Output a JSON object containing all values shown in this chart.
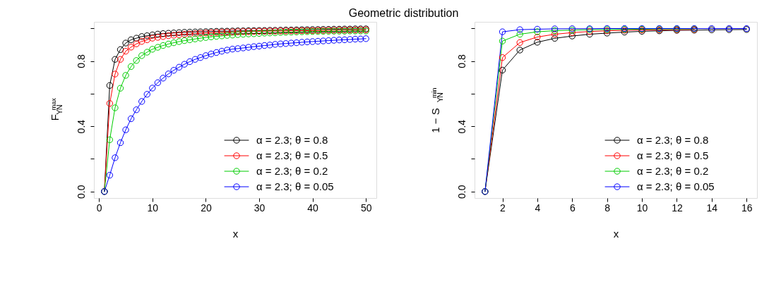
{
  "chart_data": [
    {
      "type": "line",
      "title": "Geometric distribution",
      "xlabel": "x",
      "ylabel": "F$_{Y}$$^{max}$$_{N}$",
      "marker": "circle",
      "line_style": "solid",
      "legend": "bottom right",
      "x": [
        1,
        2,
        3,
        4,
        5,
        6,
        7,
        8,
        9,
        10,
        11,
        12,
        13,
        14,
        15,
        16,
        17,
        18,
        19,
        20,
        21,
        22,
        23,
        24,
        25,
        26,
        27,
        28,
        29,
        30,
        31,
        32,
        33,
        34,
        35,
        36,
        37,
        38,
        39,
        40,
        41,
        42,
        43,
        44,
        45,
        46,
        47,
        48,
        49,
        50
      ],
      "xlim": [
        -0.96,
        51.96
      ],
      "xticks": [
        0,
        10,
        20,
        30,
        40,
        50
      ],
      "ylim": [
        -0.04,
        1.04
      ],
      "yticks": [
        {
          "value": 0,
          "label": "0.0"
        },
        {
          "value": 0.2,
          "label": null
        },
        {
          "value": 0.4,
          "label": "0.4"
        },
        {
          "value": 0.6,
          "label": null
        },
        {
          "value": 0.8,
          "label": "0.8"
        },
        {
          "value": 1.0,
          "label": null
        }
      ],
      "series": [
        {
          "name": "α = 2.3; θ = 0.8",
          "color": "#000000",
          "values": [
            0,
            0.65,
            0.81,
            0.87,
            0.91,
            0.93,
            0.94,
            0.95,
            0.955,
            0.96,
            0.965,
            0.968,
            0.97,
            0.972,
            0.974,
            0.976,
            0.977,
            0.978,
            0.979,
            0.98,
            0.981,
            0.982,
            0.983,
            0.983,
            0.984,
            0.985,
            0.985,
            0.986,
            0.986,
            0.987,
            0.987,
            0.988,
            0.988,
            0.989,
            0.99,
            0.99,
            0.991,
            0.992,
            0.992,
            0.993,
            0.993,
            0.994,
            0.994,
            0.995,
            0.995,
            0.996,
            0.996,
            0.997,
            0.997,
            0.997
          ]
        },
        {
          "name": "α = 2.3; θ = 0.5",
          "color": "#ff0000",
          "values": [
            0,
            0.54,
            0.72,
            0.81,
            0.86,
            0.885,
            0.905,
            0.92,
            0.93,
            0.94,
            0.945,
            0.95,
            0.955,
            0.958,
            0.961,
            0.964,
            0.966,
            0.968,
            0.97,
            0.972,
            0.973,
            0.975,
            0.976,
            0.977,
            0.978,
            0.979,
            0.98,
            0.98,
            0.981,
            0.982,
            0.982,
            0.983,
            0.983,
            0.984,
            0.984,
            0.985,
            0.985,
            0.986,
            0.986,
            0.986,
            0.987,
            0.987,
            0.988,
            0.988,
            0.989,
            0.989,
            0.99,
            0.99,
            0.991,
            0.991
          ]
        },
        {
          "name": "α = 2.3; θ = 0.2",
          "color": "#00cd00",
          "values": [
            0,
            0.317,
            0.513,
            0.633,
            0.712,
            0.766,
            0.803,
            0.833,
            0.854,
            0.872,
            0.884,
            0.895,
            0.904,
            0.912,
            0.919,
            0.925,
            0.93,
            0.935,
            0.94,
            0.944,
            0.948,
            0.951,
            0.954,
            0.957,
            0.959,
            0.962,
            0.964,
            0.966,
            0.967,
            0.969,
            0.971,
            0.972,
            0.973,
            0.975,
            0.976,
            0.977,
            0.978,
            0.979,
            0.98,
            0.981,
            0.981,
            0.982,
            0.982,
            0.983,
            0.983,
            0.983,
            0.984,
            0.984,
            0.984,
            0.984
          ]
        },
        {
          "name": "α = 2.3; θ = 0.05",
          "color": "#0000ff",
          "values": [
            0,
            0.1,
            0.207,
            0.299,
            0.378,
            0.446,
            0.501,
            0.552,
            0.596,
            0.634,
            0.667,
            0.695,
            0.721,
            0.743,
            0.762,
            0.78,
            0.796,
            0.81,
            0.821,
            0.833,
            0.843,
            0.852,
            0.86,
            0.867,
            0.873,
            0.876,
            0.88,
            0.884,
            0.888,
            0.891,
            0.895,
            0.898,
            0.902,
            0.905,
            0.907,
            0.91,
            0.912,
            0.915,
            0.917,
            0.919,
            0.921,
            0.923,
            0.925,
            0.927,
            0.929,
            0.93,
            0.932,
            0.934,
            0.935,
            0.937
          ]
        }
      ]
    },
    {
      "type": "line",
      "xlabel": "x",
      "ylabel": "1 − S$_{Y}$$^{min}$$_{N}$",
      "marker": "circle",
      "line_style": "solid",
      "legend": "bottom right",
      "x": [
        1,
        2,
        3,
        4,
        5,
        6,
        7,
        8,
        9,
        10,
        11,
        12,
        13,
        14,
        15,
        16
      ],
      "xlim": [
        0.4,
        16.6
      ],
      "xticks": [
        2,
        4,
        6,
        8,
        10,
        12,
        14,
        16
      ],
      "ylim": [
        -0.04,
        1.04
      ],
      "yticks": [
        {
          "value": 0,
          "label": "0.0"
        },
        {
          "value": 0.2,
          "label": null
        },
        {
          "value": 0.4,
          "label": "0.4"
        },
        {
          "value": 0.6,
          "label": null
        },
        {
          "value": 0.8,
          "label": "0.8"
        },
        {
          "value": 1.0,
          "label": null
        }
      ],
      "series": [
        {
          "name": "α = 2.3; θ = 0.8",
          "color": "#000000",
          "values": [
            0,
            0.744,
            0.867,
            0.915,
            0.939,
            0.953,
            0.964,
            0.971,
            0.977,
            0.982,
            0.985,
            0.988,
            0.989,
            0.991,
            0.992,
            0.993
          ]
        },
        {
          "name": "α = 2.3; θ = 0.5",
          "color": "#ff0000",
          "values": [
            0,
            0.821,
            0.913,
            0.947,
            0.964,
            0.974,
            0.981,
            0.985,
            0.988,
            0.99,
            0.991,
            0.992,
            0.993,
            null,
            null,
            null
          ]
        },
        {
          "name": "α = 2.3; θ = 0.2",
          "color": "#00cd00",
          "values": [
            0,
            0.922,
            0.964,
            0.979,
            0.986,
            0.989,
            0.992,
            0.993,
            0.994,
            0.995,
            0.996,
            0.996,
            0.997,
            null,
            null,
            null
          ]
        },
        {
          "name": "α = 2.3; θ = 0.05",
          "color": "#0000ff",
          "values": [
            0,
            0.979,
            0.992,
            0.995,
            0.997,
            0.998,
            0.998,
            0.999,
            0.999,
            0.999,
            0.999,
            0.999,
            0.999,
            0.999,
            0.999,
            0.999
          ]
        }
      ]
    }
  ]
}
